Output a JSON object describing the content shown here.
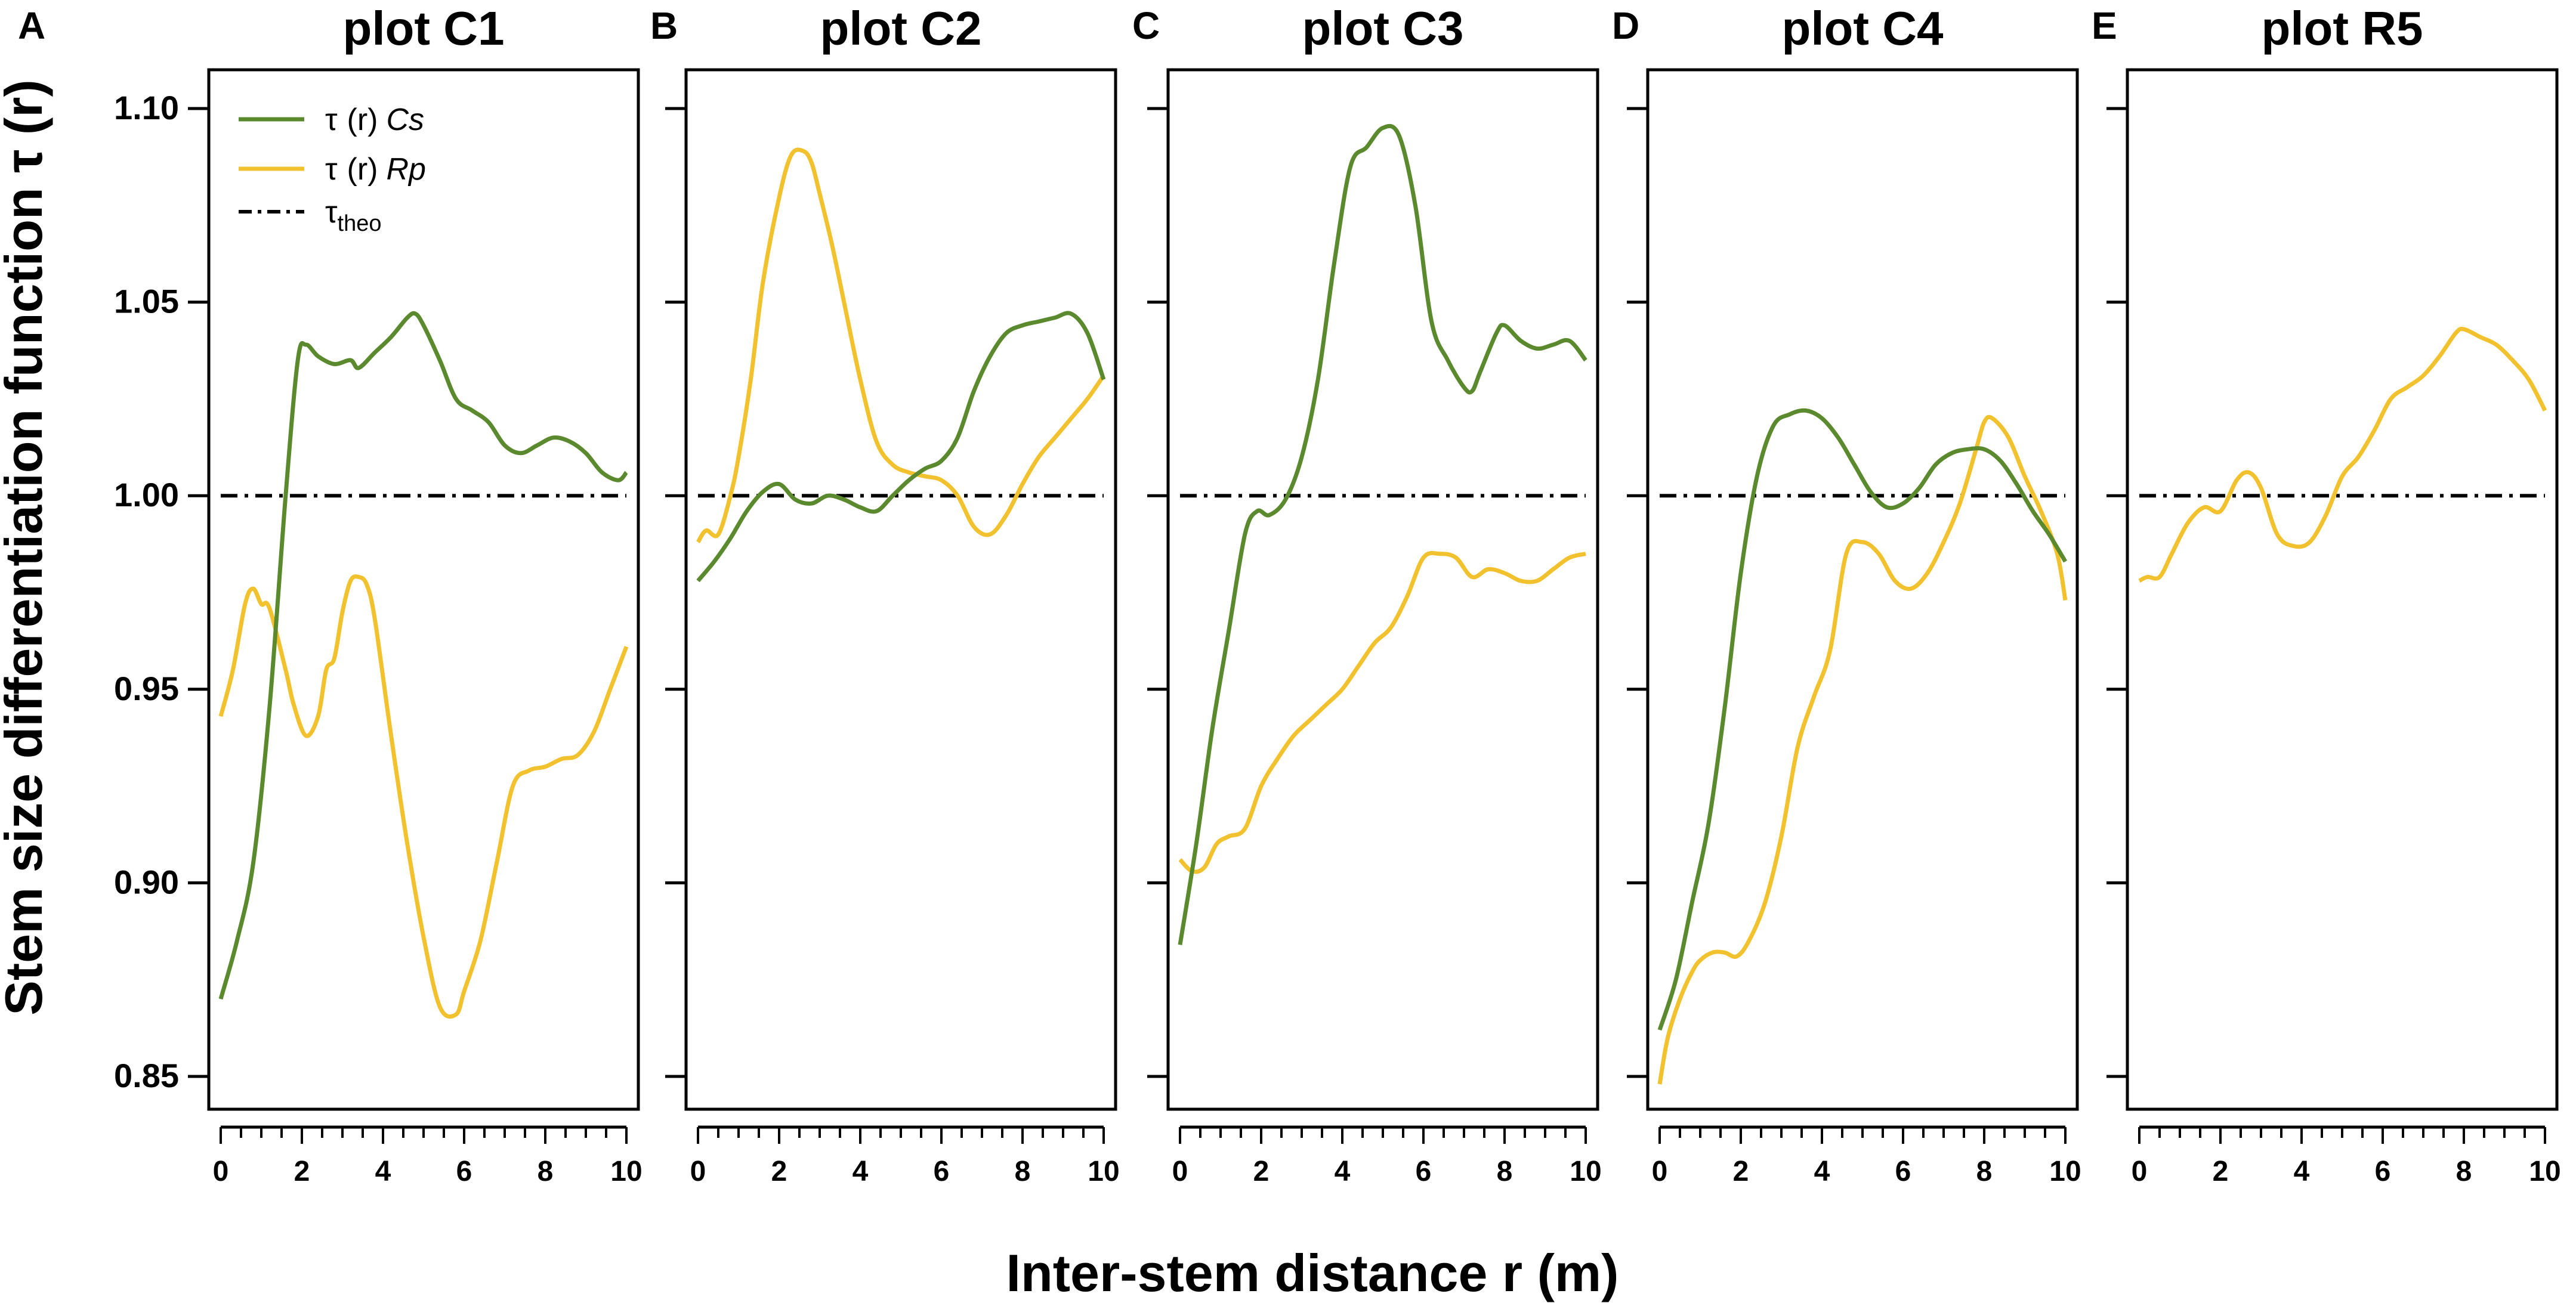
{
  "figure": {
    "ylabel": "Stem size differentiation function τ (r)",
    "xlabel": "Inter-stem distance r (m)",
    "legend": {
      "cs": {
        "tau": "τ",
        "r": "(r)",
        "species": "Cs",
        "color": "#5b8a2e"
      },
      "rp": {
        "tau": "τ",
        "r": "(r)",
        "species": "Rp",
        "color": "#f2c12e"
      },
      "theo": {
        "tau": "τ",
        "sub": "theo",
        "color": "#000000"
      }
    }
  },
  "chart_data": [
    {
      "type": "line",
      "letter": "A",
      "title": "plot C1",
      "xlim": [
        0,
        10
      ],
      "ylim": [
        0.85,
        1.1
      ],
      "xticks": [
        0,
        2,
        4,
        6,
        8,
        10
      ],
      "yticks": [
        0.85,
        0.9,
        0.95,
        1.0,
        1.05,
        1.1
      ],
      "reference": 1.0,
      "series": [
        {
          "name": "Cs",
          "color": "#5b8a2e",
          "x": [
            0,
            0.4,
            0.8,
            1.2,
            1.6,
            1.9,
            2.1,
            2.4,
            2.8,
            3.2,
            3.4,
            3.8,
            4.2,
            4.6,
            4.8,
            5.0,
            5.4,
            5.8,
            6.2,
            6.6,
            7.0,
            7.4,
            7.8,
            8.2,
            8.6,
            9.0,
            9.4,
            9.8,
            10
          ],
          "y": [
            0.87,
            0.885,
            0.905,
            0.945,
            1.0,
            1.035,
            1.039,
            1.036,
            1.034,
            1.035,
            1.033,
            1.037,
            1.041,
            1.046,
            1.047,
            1.044,
            1.035,
            1.025,
            1.022,
            1.019,
            1.013,
            1.011,
            1.013,
            1.015,
            1.014,
            1.011,
            1.006,
            1.004,
            1.006
          ]
        },
        {
          "name": "Rp",
          "color": "#f2c12e",
          "x": [
            0,
            0.3,
            0.6,
            0.8,
            1.0,
            1.2,
            1.6,
            1.8,
            2.1,
            2.4,
            2.6,
            2.8,
            3.0,
            3.2,
            3.4,
            3.6,
            3.8,
            4.2,
            4.6,
            5.0,
            5.4,
            5.8,
            6.0,
            6.4,
            6.8,
            7.2,
            7.6,
            8.0,
            8.4,
            8.8,
            9.2,
            9.6,
            10
          ],
          "y": [
            0.943,
            0.955,
            0.972,
            0.976,
            0.972,
            0.971,
            0.955,
            0.946,
            0.938,
            0.943,
            0.955,
            0.958,
            0.97,
            0.978,
            0.979,
            0.977,
            0.968,
            0.938,
            0.91,
            0.886,
            0.868,
            0.866,
            0.872,
            0.885,
            0.905,
            0.925,
            0.929,
            0.93,
            0.932,
            0.933,
            0.939,
            0.95,
            0.961
          ]
        }
      ]
    },
    {
      "type": "line",
      "letter": "B",
      "title": "plot C2",
      "xlim": [
        0,
        10
      ],
      "ylim": [
        0.85,
        1.1
      ],
      "xticks": [
        0,
        2,
        4,
        6,
        8,
        10
      ],
      "yticks": [
        0.85,
        0.9,
        0.95,
        1.0,
        1.05,
        1.1
      ],
      "reference": 1.0,
      "series": [
        {
          "name": "Cs",
          "color": "#5b8a2e",
          "x": [
            0,
            0.4,
            0.8,
            1.2,
            1.6,
            2.0,
            2.4,
            2.8,
            3.2,
            3.6,
            4.0,
            4.4,
            4.8,
            5.2,
            5.6,
            6.0,
            6.4,
            6.8,
            7.2,
            7.6,
            8.0,
            8.4,
            8.8,
            9.2,
            9.6,
            10
          ],
          "y": [
            0.978,
            0.983,
            0.989,
            0.996,
            1.001,
            1.003,
            0.999,
            0.998,
            1.0,
            0.999,
            0.997,
            0.996,
            1.0,
            1.004,
            1.007,
            1.009,
            1.015,
            1.027,
            1.036,
            1.042,
            1.044,
            1.045,
            1.046,
            1.047,
            1.042,
            1.03
          ]
        },
        {
          "name": "Rp",
          "color": "#f2c12e",
          "x": [
            0,
            0.2,
            0.5,
            0.8,
            1.0,
            1.3,
            1.6,
            2.0,
            2.3,
            2.6,
            2.8,
            3.0,
            3.3,
            3.6,
            4.0,
            4.4,
            4.8,
            5.2,
            5.6,
            6.0,
            6.4,
            6.8,
            7.2,
            7.6,
            8.0,
            8.4,
            8.8,
            9.2,
            9.6,
            10
          ],
          "y": [
            0.988,
            0.991,
            0.99,
            1.0,
            1.01,
            1.03,
            1.055,
            1.077,
            1.088,
            1.089,
            1.086,
            1.078,
            1.065,
            1.05,
            1.03,
            1.014,
            1.008,
            1.006,
            1.005,
            1.004,
            1.0,
            0.992,
            0.99,
            0.995,
            1.003,
            1.01,
            1.015,
            1.02,
            1.025,
            1.031
          ]
        }
      ]
    },
    {
      "type": "line",
      "letter": "C",
      "title": "plot C3",
      "xlim": [
        0,
        10
      ],
      "ylim": [
        0.85,
        1.1
      ],
      "xticks": [
        0,
        2,
        4,
        6,
        8,
        10
      ],
      "yticks": [
        0.85,
        0.9,
        0.95,
        1.0,
        1.05,
        1.1
      ],
      "reference": 1.0,
      "series": [
        {
          "name": "Cs",
          "color": "#5b8a2e",
          "x": [
            0,
            0.4,
            0.8,
            1.2,
            1.6,
            1.9,
            2.2,
            2.6,
            3.0,
            3.4,
            3.8,
            4.2,
            4.6,
            5.0,
            5.4,
            5.8,
            6.2,
            6.6,
            7.0,
            7.2,
            7.4,
            7.8,
            8.0,
            8.4,
            8.8,
            9.2,
            9.6,
            10
          ],
          "y": [
            0.884,
            0.91,
            0.94,
            0.965,
            0.99,
            0.996,
            0.995,
            0.999,
            1.01,
            1.03,
            1.06,
            1.085,
            1.09,
            1.095,
            1.093,
            1.075,
            1.045,
            1.035,
            1.028,
            1.027,
            1.032,
            1.042,
            1.044,
            1.04,
            1.038,
            1.039,
            1.04,
            1.035
          ]
        },
        {
          "name": "Rp",
          "color": "#f2c12e",
          "x": [
            0,
            0.3,
            0.6,
            0.9,
            1.2,
            1.6,
            2.0,
            2.4,
            2.8,
            3.2,
            3.6,
            4.0,
            4.4,
            4.8,
            5.2,
            5.6,
            6.0,
            6.4,
            6.8,
            7.2,
            7.6,
            8.0,
            8.4,
            8.8,
            9.2,
            9.6,
            10
          ],
          "y": [
            0.906,
            0.903,
            0.904,
            0.91,
            0.912,
            0.914,
            0.925,
            0.932,
            0.938,
            0.942,
            0.946,
            0.95,
            0.956,
            0.962,
            0.966,
            0.974,
            0.984,
            0.985,
            0.984,
            0.979,
            0.981,
            0.98,
            0.978,
            0.978,
            0.981,
            0.984,
            0.985
          ]
        }
      ]
    },
    {
      "type": "line",
      "letter": "D",
      "title": "plot C4",
      "xlim": [
        0,
        10
      ],
      "ylim": [
        0.85,
        1.1
      ],
      "xticks": [
        0,
        2,
        4,
        6,
        8,
        10
      ],
      "yticks": [
        0.85,
        0.9,
        0.95,
        1.0,
        1.05,
        1.1
      ],
      "reference": 1.0,
      "series": [
        {
          "name": "Cs",
          "color": "#5b8a2e",
          "x": [
            0,
            0.4,
            0.8,
            1.2,
            1.6,
            2.0,
            2.4,
            2.8,
            3.2,
            3.6,
            4.0,
            4.4,
            4.8,
            5.2,
            5.6,
            6.0,
            6.4,
            6.8,
            7.2,
            7.6,
            8.0,
            8.4,
            8.8,
            9.2,
            9.6,
            10
          ],
          "y": [
            0.862,
            0.875,
            0.895,
            0.915,
            0.945,
            0.98,
            1.005,
            1.018,
            1.021,
            1.022,
            1.02,
            1.015,
            1.008,
            1.001,
            0.997,
            0.998,
            1.002,
            1.008,
            1.011,
            1.012,
            1.012,
            1.009,
            1.003,
            0.996,
            0.99,
            0.983
          ]
        },
        {
          "name": "Rp",
          "color": "#f2c12e",
          "x": [
            0,
            0.2,
            0.5,
            0.8,
            1.0,
            1.3,
            1.6,
            1.9,
            2.2,
            2.6,
            3.0,
            3.4,
            3.8,
            4.2,
            4.6,
            5.0,
            5.4,
            5.8,
            6.2,
            6.6,
            7.0,
            7.4,
            7.8,
            8.0,
            8.2,
            8.6,
            9.0,
            9.4,
            9.8,
            10
          ],
          "y": [
            0.848,
            0.86,
            0.87,
            0.877,
            0.88,
            0.882,
            0.882,
            0.881,
            0.885,
            0.895,
            0.912,
            0.935,
            0.948,
            0.96,
            0.985,
            0.988,
            0.985,
            0.978,
            0.976,
            0.98,
            0.988,
            0.998,
            1.012,
            1.019,
            1.02,
            1.015,
            1.005,
            0.996,
            0.985,
            0.973
          ]
        }
      ]
    },
    {
      "type": "line",
      "letter": "E",
      "title": "plot R5",
      "xlim": [
        0,
        10
      ],
      "ylim": [
        0.85,
        1.1
      ],
      "xticks": [
        0,
        2,
        4,
        6,
        8,
        10
      ],
      "yticks": [
        0.85,
        0.9,
        0.95,
        1.0,
        1.05,
        1.1
      ],
      "reference": 1.0,
      "series": [
        {
          "name": "Rp",
          "color": "#f2c12e",
          "x": [
            0,
            0.2,
            0.5,
            0.8,
            1.2,
            1.6,
            2.0,
            2.4,
            2.7,
            3.0,
            3.4,
            3.8,
            4.2,
            4.6,
            5.0,
            5.4,
            5.8,
            6.2,
            6.6,
            7.0,
            7.4,
            7.8,
            8.0,
            8.4,
            8.8,
            9.2,
            9.6,
            10
          ],
          "y": [
            0.978,
            0.979,
            0.979,
            0.985,
            0.993,
            0.997,
            0.996,
            1.004,
            1.006,
            1.002,
            0.99,
            0.987,
            0.988,
            0.995,
            1.005,
            1.01,
            1.017,
            1.025,
            1.028,
            1.031,
            1.036,
            1.042,
            1.043,
            1.041,
            1.039,
            1.035,
            1.03,
            1.022
          ]
        }
      ]
    }
  ]
}
